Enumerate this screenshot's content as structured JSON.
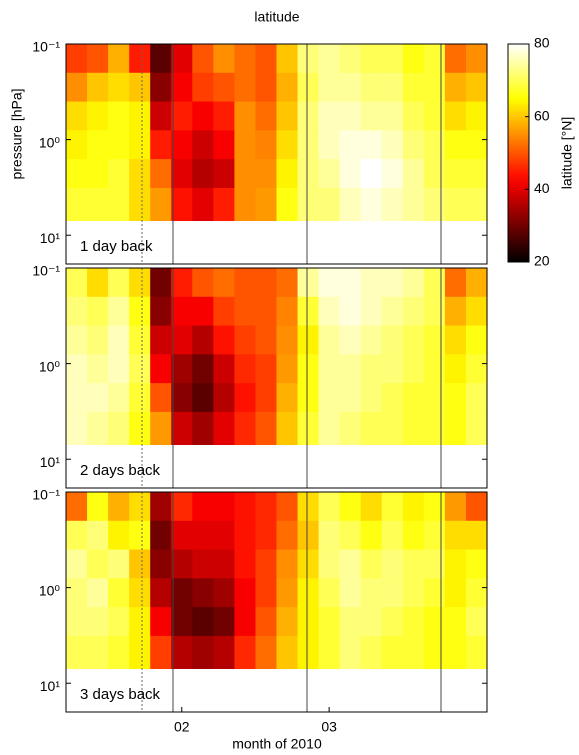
{
  "chart_data": [
    {
      "type": "heatmap",
      "title": "latitude",
      "y_label": "pressure [hPa]",
      "annotation": "1 day back",
      "log_y": true,
      "ylim": [
        0.1,
        20
      ],
      "yticks": [
        {
          "value": 0.1,
          "label": "10⁻¹"
        },
        {
          "value": 1,
          "label": "10⁰"
        },
        {
          "value": 10,
          "label": "10¹"
        }
      ],
      "y_edges": [
        0.1,
        0.2,
        0.4,
        0.8,
        1.6,
        3.2,
        7
      ],
      "categories": [
        null,
        null,
        null,
        null,
        null,
        null,
        null,
        null,
        null,
        null,
        null,
        null,
        null,
        null,
        null,
        null,
        null,
        null,
        null,
        null
      ],
      "values": [
        [
          48,
          50,
          58,
          45,
          28,
          40,
          50,
          55,
          52,
          50,
          60,
          72,
          74,
          72,
          70,
          70,
          66,
          68,
          52,
          55
        ],
        [
          55,
          60,
          62,
          60,
          32,
          42,
          48,
          50,
          52,
          50,
          58,
          70,
          74,
          74,
          72,
          72,
          68,
          68,
          58,
          60
        ],
        [
          62,
          64,
          66,
          64,
          38,
          45,
          42,
          45,
          55,
          52,
          60,
          72,
          76,
          76,
          74,
          74,
          70,
          68,
          62,
          64
        ],
        [
          64,
          66,
          66,
          64,
          45,
          42,
          38,
          42,
          55,
          54,
          62,
          72,
          76,
          78,
          78,
          76,
          72,
          70,
          66,
          66
        ],
        [
          66,
          66,
          68,
          62,
          52,
          40,
          36,
          38,
          55,
          55,
          64,
          72,
          74,
          78,
          80,
          78,
          74,
          70,
          68,
          68
        ],
        [
          68,
          68,
          68,
          62,
          56,
          44,
          40,
          45,
          55,
          56,
          66,
          72,
          72,
          76,
          78,
          76,
          74,
          72,
          70,
          70
        ]
      ],
      "colorbar": {
        "label": "latitude [°N]",
        "clim": [
          20,
          80
        ],
        "ticks": [
          20,
          40,
          60,
          80
        ]
      }
    },
    {
      "type": "heatmap",
      "annotation": "2 days back",
      "log_y": true,
      "ylim": [
        0.1,
        20
      ],
      "yticks": [
        {
          "value": 0.1,
          "label": "10⁻¹"
        },
        {
          "value": 1,
          "label": "10⁰"
        },
        {
          "value": 10,
          "label": "10¹"
        }
      ],
      "y_edges": [
        0.1,
        0.2,
        0.4,
        0.8,
        1.6,
        3.2,
        7
      ],
      "categories": [
        null,
        null,
        null,
        null,
        null,
        null,
        null,
        null,
        null,
        null,
        null,
        null,
        null,
        null,
        null,
        null,
        null,
        null,
        null,
        null
      ],
      "values": [
        [
          70,
          62,
          70,
          62,
          30,
          45,
          50,
          52,
          50,
          50,
          52,
          74,
          78,
          78,
          76,
          76,
          74,
          70,
          52,
          58
        ],
        [
          72,
          70,
          74,
          66,
          32,
          42,
          42,
          48,
          50,
          50,
          54,
          68,
          76,
          78,
          76,
          74,
          72,
          70,
          58,
          62
        ],
        [
          74,
          72,
          76,
          68,
          38,
          40,
          36,
          44,
          48,
          50,
          55,
          64,
          74,
          76,
          74,
          72,
          70,
          68,
          62,
          66
        ],
        [
          76,
          74,
          76,
          70,
          42,
          34,
          30,
          38,
          46,
          48,
          56,
          66,
          74,
          74,
          72,
          72,
          70,
          68,
          64,
          68
        ],
        [
          76,
          76,
          74,
          68,
          50,
          32,
          28,
          36,
          44,
          48,
          58,
          66,
          74,
          74,
          72,
          70,
          68,
          68,
          66,
          70
        ],
        [
          76,
          74,
          72,
          66,
          56,
          38,
          34,
          40,
          46,
          50,
          60,
          68,
          74,
          72,
          70,
          70,
          68,
          68,
          66,
          70
        ]
      ]
    },
    {
      "type": "heatmap",
      "annotation": "3 days back",
      "x_label": "month of 2010",
      "log_y": true,
      "ylim": [
        0.1,
        20
      ],
      "yticks": [
        {
          "value": 0.1,
          "label": "10⁻¹"
        },
        {
          "value": 1,
          "label": "10⁰"
        },
        {
          "value": 10,
          "label": "10¹"
        }
      ],
      "y_edges": [
        0.1,
        0.2,
        0.4,
        0.8,
        1.6,
        3.2,
        7
      ],
      "categories": [
        null,
        null,
        null,
        null,
        null,
        "02",
        null,
        null,
        null,
        null,
        null,
        null,
        "03",
        null,
        null,
        null,
        null,
        null,
        null,
        null
      ],
      "values": [
        [
          52,
          66,
          58,
          62,
          34,
          46,
          42,
          42,
          44,
          46,
          50,
          62,
          70,
          66,
          62,
          68,
          64,
          66,
          56,
          50
        ],
        [
          70,
          72,
          64,
          66,
          30,
          40,
          40,
          40,
          44,
          46,
          52,
          60,
          72,
          70,
          66,
          70,
          66,
          68,
          62,
          62
        ],
        [
          74,
          70,
          72,
          60,
          32,
          36,
          38,
          38,
          44,
          48,
          55,
          62,
          72,
          74,
          70,
          72,
          70,
          70,
          64,
          66
        ],
        [
          72,
          74,
          68,
          62,
          36,
          30,
          32,
          34,
          42,
          48,
          56,
          64,
          70,
          74,
          72,
          72,
          70,
          68,
          64,
          68
        ],
        [
          72,
          72,
          70,
          64,
          42,
          30,
          28,
          30,
          42,
          50,
          58,
          64,
          68,
          72,
          72,
          70,
          68,
          66,
          66,
          70
        ],
        [
          70,
          70,
          68,
          64,
          48,
          36,
          34,
          36,
          46,
          52,
          60,
          64,
          68,
          72,
          70,
          68,
          68,
          66,
          66,
          68
        ]
      ]
    }
  ]
}
